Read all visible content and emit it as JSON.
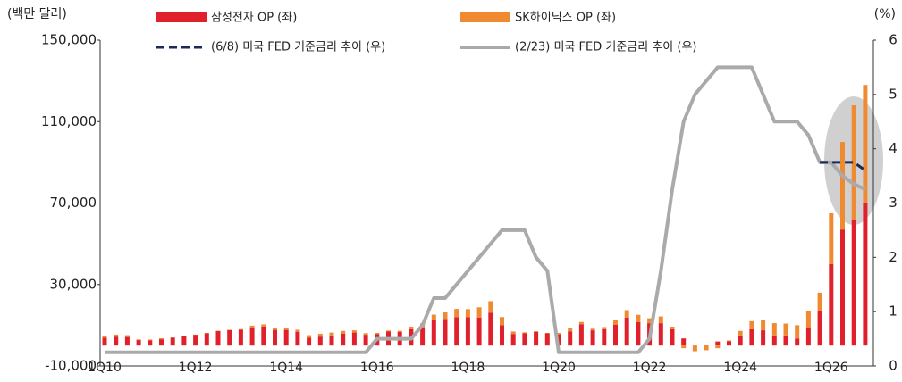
{
  "chart_data": {
    "type": "bar",
    "y_axis_label": "(백만 달러)",
    "y2_axis_label": "(%)",
    "categories": [
      "1Q10",
      null,
      null,
      null,
      null,
      null,
      null,
      null,
      "1Q12",
      null,
      null,
      null,
      null,
      null,
      null,
      null,
      "1Q14",
      null,
      null,
      null,
      null,
      null,
      null,
      null,
      "1Q16",
      null,
      null,
      null,
      null,
      null,
      null,
      null,
      "1Q18",
      null,
      null,
      null,
      null,
      null,
      null,
      null,
      "1Q20",
      null,
      null,
      null,
      null,
      null,
      null,
      null,
      "1Q22",
      null,
      null,
      null,
      null,
      null,
      null,
      null,
      "1Q24",
      null,
      null,
      null,
      null,
      null,
      null,
      null,
      "1Q26",
      null,
      null,
      null
    ],
    "series": [
      {
        "name": "삼성전자 OP (좌)",
        "type": "bar",
        "color": "#e0202a",
        "values": [
          3800,
          4400,
          4200,
          2700,
          2500,
          3100,
          3900,
          4500,
          5300,
          6000,
          7200,
          7600,
          7800,
          8800,
          9300,
          7700,
          7700,
          6800,
          3800,
          4400,
          5000,
          5900,
          6400,
          5300,
          5700,
          7000,
          6700,
          8000,
          8800,
          12500,
          13000,
          14000,
          14000,
          13800,
          16200,
          10000,
          5700,
          6000,
          6700,
          6000,
          5500,
          7000,
          10500,
          7500,
          8000,
          10300,
          13800,
          11500,
          11000,
          11000,
          8000,
          3500,
          500,
          500,
          2000,
          2200,
          5000,
          8000,
          7500,
          5000,
          5000,
          3500,
          9000,
          17000,
          40000,
          57000,
          62000,
          70000
        ]
      },
      {
        "name": "SK하이닉스 OP (좌)",
        "type": "bar",
        "color": "#f08a30",
        "values": [
          900,
          1000,
          900,
          300,
          450,
          500,
          100,
          100,
          100,
          200,
          100,
          200,
          300,
          1000,
          1100,
          900,
          1000,
          1000,
          1300,
          1400,
          1400,
          1300,
          1100,
          800,
          500,
          400,
          600,
          1300,
          2200,
          2700,
          3300,
          4000,
          3900,
          5000,
          5600,
          4000,
          1200,
          500,
          400,
          200,
          700,
          1600,
          1100,
          800,
          1100,
          2400,
          3600,
          3600,
          2400,
          3300,
          1300,
          -1300,
          -2800,
          -2300,
          -1300,
          300,
          2200,
          4000,
          5000,
          6000,
          5800,
          6500,
          8200,
          9000,
          25000,
          43000,
          56000,
          58000
        ]
      },
      {
        "name": "(6/8) 미국 FED 기준금리 추이 (우)",
        "type": "line",
        "axis": "y2",
        "dashed": true,
        "color": "#1a2a5a",
        "values": [
          null,
          null,
          null,
          null,
          null,
          null,
          null,
          null,
          null,
          null,
          null,
          null,
          null,
          null,
          null,
          null,
          null,
          null,
          null,
          null,
          null,
          null,
          null,
          null,
          null,
          null,
          null,
          null,
          null,
          null,
          null,
          null,
          null,
          null,
          null,
          null,
          null,
          null,
          null,
          null,
          null,
          null,
          null,
          null,
          null,
          null,
          null,
          null,
          null,
          null,
          null,
          null,
          null,
          null,
          null,
          null,
          null,
          null,
          null,
          null,
          null,
          null,
          null,
          3.75,
          3.75,
          3.75,
          3.75,
          3.6
        ]
      },
      {
        "name": "(2/23) 미국 FED 기준금리 추이 (우)",
        "type": "line",
        "axis": "y2",
        "dashed": false,
        "color": "#aaaaaa",
        "values": [
          0.25,
          0.25,
          0.25,
          0.25,
          0.25,
          0.25,
          0.25,
          0.25,
          0.25,
          0.25,
          0.25,
          0.25,
          0.25,
          0.25,
          0.25,
          0.25,
          0.25,
          0.25,
          0.25,
          0.25,
          0.25,
          0.25,
          0.25,
          0.25,
          0.5,
          0.5,
          0.5,
          0.5,
          0.75,
          1.25,
          1.25,
          1.5,
          1.75,
          2.0,
          2.25,
          2.5,
          2.5,
          2.5,
          2.0,
          1.75,
          0.25,
          0.25,
          0.25,
          0.25,
          0.25,
          0.25,
          0.25,
          0.25,
          0.5,
          1.75,
          3.25,
          4.5,
          5.0,
          5.25,
          5.5,
          5.5,
          5.5,
          5.5,
          5.0,
          4.5,
          4.5,
          4.5,
          4.25,
          3.75,
          3.75,
          3.5,
          3.35,
          3.25
        ]
      }
    ],
    "ylim": [
      -10000,
      150000
    ],
    "yticks": [
      {
        "value": 150000,
        "label": "150,000"
      },
      {
        "value": 110000,
        "label": "110,000"
      },
      {
        "value": 70000,
        "label": "70,000"
      },
      {
        "value": 30000,
        "label": "30,000"
      },
      {
        "value": -10000,
        "label": "-10,000"
      }
    ],
    "y2lim": [
      0,
      6
    ],
    "y2ticks": [
      0,
      1,
      2,
      3,
      4,
      5,
      6
    ]
  }
}
